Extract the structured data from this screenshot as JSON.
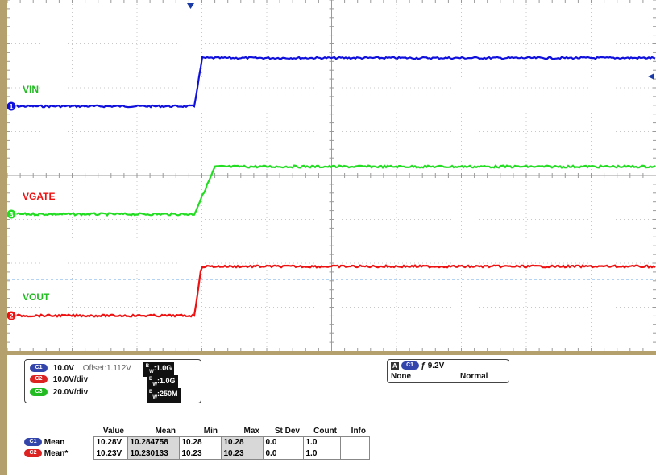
{
  "traces": {
    "ch1": {
      "label": "VIN",
      "color": "#1010dd",
      "marker": "1",
      "low_div": -0.5,
      "high_div": 0.55
    },
    "ch3": {
      "label": "VGATE",
      "color": "#22dd22",
      "marker": "3",
      "low_div": 0.0,
      "high_div": 0.5
    },
    "ch2": {
      "label": "VOUT",
      "color": "#ee1111",
      "marker": "2",
      "low_div": 0.0,
      "high_div": 0.55
    }
  },
  "label_colors": {
    "VIN": "#22bb22",
    "VGATE": "#ee1111",
    "VOUT": "#22bb22"
  },
  "channel_box": {
    "rows": [
      {
        "chip": "C1",
        "chip_color": "#3344aa",
        "scale": "10.0V",
        "offset": "Offset:1.112V",
        "bw": "1.0G"
      },
      {
        "chip": "C2",
        "chip_color": "#dd2222",
        "scale": "10.0V/div",
        "offset": "",
        "bw": "1.0G"
      },
      {
        "chip": "C3",
        "chip_color": "#22bb22",
        "scale": "20.0V/div",
        "offset": "",
        "bw": "250M"
      }
    ],
    "bw_prefix": "B",
    "bw_sub": "W"
  },
  "trigger_box": {
    "a_label": "A",
    "chip": "C1",
    "level": "9.2V",
    "coupling": "None",
    "mode": "Normal"
  },
  "measurements": {
    "headers": [
      "Value",
      "Mean",
      "Min",
      "Max",
      "St Dev",
      "Count",
      "Info"
    ],
    "rows": [
      {
        "chip": "C1",
        "chip_color": "#3344aa",
        "name": "Mean",
        "value": "10.28V",
        "mean": "10.284758",
        "min": "10.28",
        "max": "10.28",
        "stdev": "0.0",
        "count": "1.0",
        "info": ""
      },
      {
        "chip": "C2",
        "chip_color": "#dd2222",
        "name": "Mean*",
        "value": "10.23V",
        "mean": "10.230133",
        "min": "10.23",
        "max": "10.23",
        "stdev": "0.0",
        "count": "1.0",
        "info": ""
      }
    ]
  }
}
